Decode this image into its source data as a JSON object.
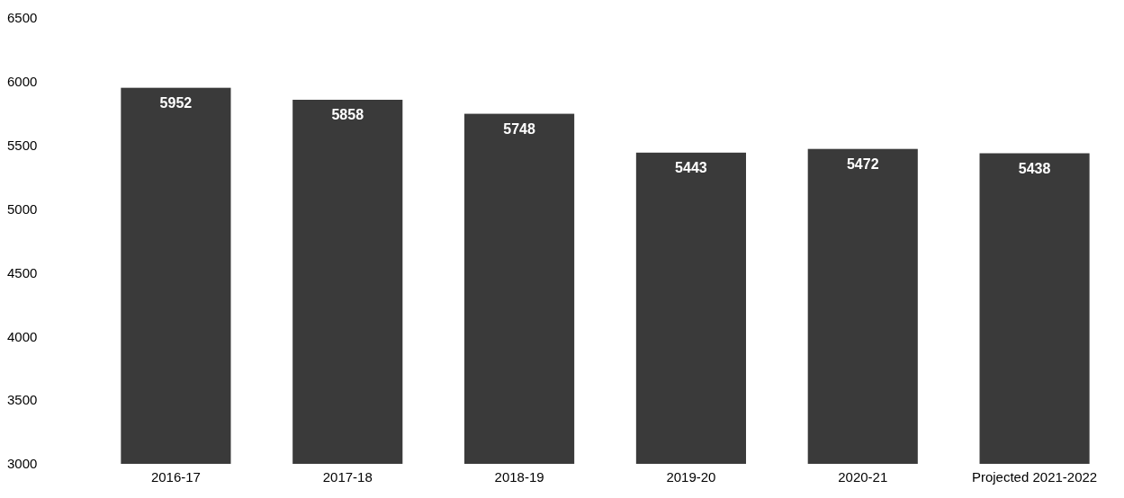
{
  "chart_data": {
    "type": "bar",
    "categories": [
      "2016-17",
      "2017-18",
      "2018-19",
      "2019-20",
      "2020-21",
      "Projected 2021-2022"
    ],
    "values": [
      5952,
      5858,
      5748,
      5443,
      5472,
      5438
    ],
    "color": "#3a3a3a",
    "ylim": [
      3000,
      6500
    ],
    "yticks": [
      3000,
      3500,
      4000,
      4500,
      5000,
      5500,
      6000,
      6500
    ],
    "grid": false,
    "data_labels": true
  }
}
